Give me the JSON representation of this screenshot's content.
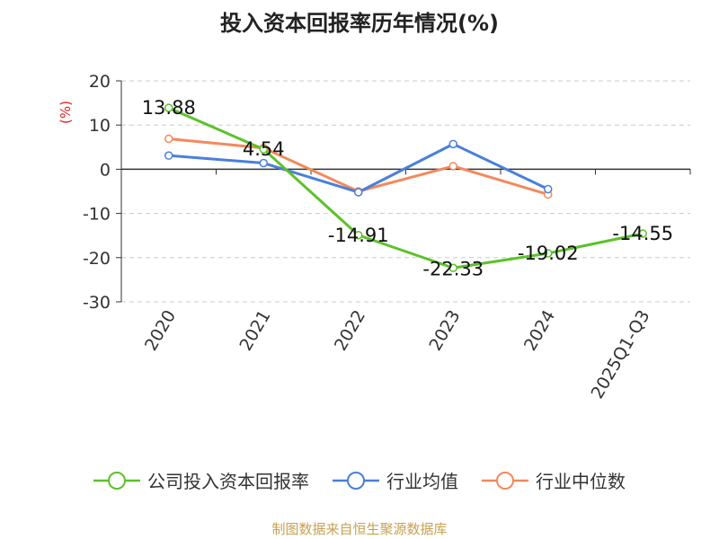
{
  "title": "投入资本回报率历年情况(%)",
  "source": "制图数据来自恒生聚源数据库",
  "chart_data": {
    "type": "line",
    "ylabel": "(%)",
    "ylim": [
      -30,
      20
    ],
    "yticks": [
      20,
      10,
      0,
      -10,
      -20,
      -30
    ],
    "categories": [
      "2020",
      "2021",
      "2022",
      "2023",
      "2024",
      "2025Q1-Q3"
    ],
    "grid": true,
    "legend_position": "bottom",
    "series": [
      {
        "name": "公司投入资本回报率",
        "color": "#5cc12a",
        "values": [
          13.88,
          4.54,
          -14.91,
          -22.33,
          -19.02,
          -14.55
        ],
        "labels": [
          "13.88",
          "4.54",
          "-14.91",
          "-22.33",
          "-19.02",
          "-14.55"
        ]
      },
      {
        "name": "行业均值",
        "color": "#4a7fdc",
        "values": [
          3.1,
          1.4,
          -5.2,
          5.7,
          -4.5,
          null
        ]
      },
      {
        "name": "行业中位数",
        "color": "#f4895c",
        "values": [
          6.9,
          4.8,
          -5.0,
          0.7,
          -5.7,
          null
        ]
      }
    ]
  }
}
